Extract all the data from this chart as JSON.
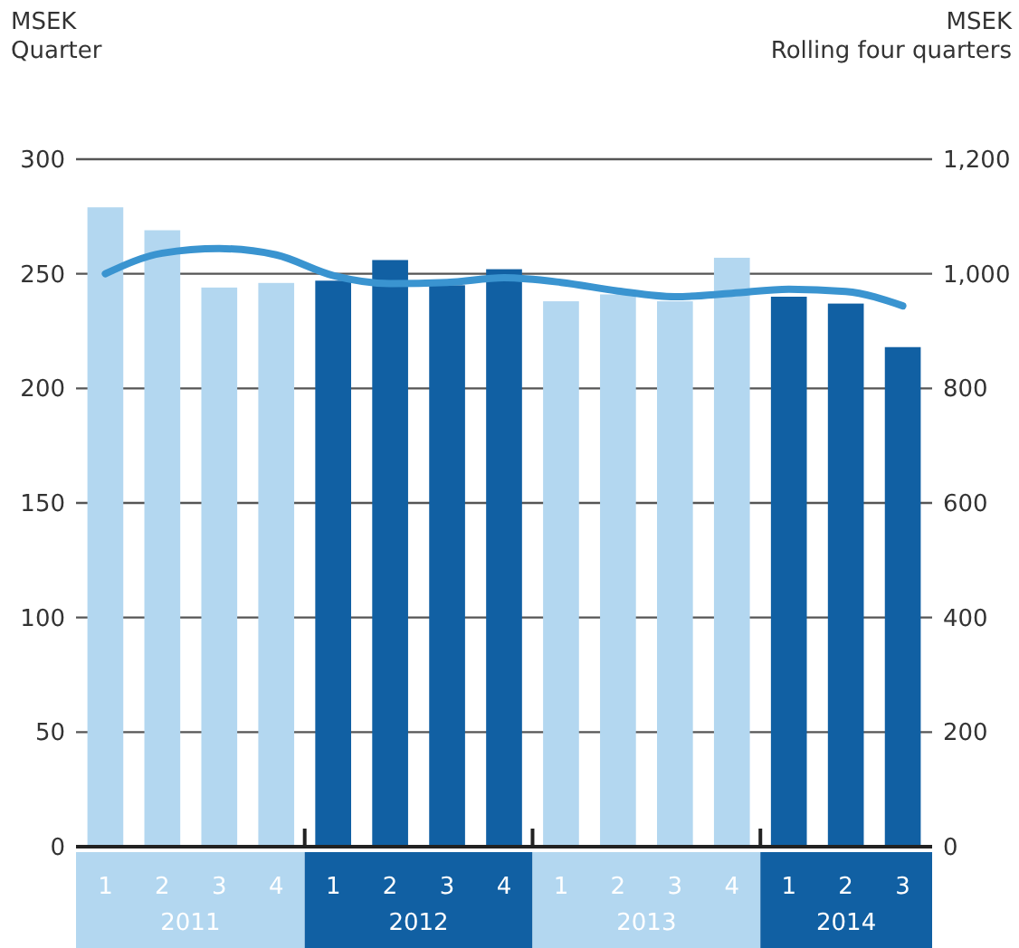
{
  "chart_data": {
    "type": "bar",
    "ylabel": "MSEK\nQuarter",
    "y2label": "MSEK\nRolling four quarters",
    "categories": [
      "1",
      "2",
      "3",
      "4",
      "1",
      "2",
      "3",
      "4",
      "1",
      "2",
      "3",
      "4",
      "1",
      "2",
      "3"
    ],
    "annotations": [
      "2011",
      "2012",
      "2013",
      "2014"
    ],
    "series": [
      {
        "colors": [
          "#b3d7f0",
          "#b3d7f0",
          "#b3d7f0",
          "#b3d7f0",
          "#1160a3",
          "#1160a3",
          "#1160a3",
          "#1160a3",
          "#b3d7f0",
          "#b3d7f0",
          "#b3d7f0",
          "#b3d7f0",
          "#1160a3",
          "#1160a3",
          "#1160a3"
        ],
        "values": [
          279,
          269,
          244,
          246,
          247,
          256,
          245,
          252,
          238,
          241,
          238,
          257,
          240,
          237,
          218
        ]
      },
      {
        "type": "line",
        "axis": "y2",
        "color": "#3a94d0",
        "values": [
          1000,
          1036,
          1044,
          1033,
          997,
          983,
          985,
          993,
          985,
          970,
          960,
          966,
          973,
          969,
          944
        ]
      }
    ],
    "ylim": [
      0,
      300
    ],
    "yticks": [
      0,
      50,
      100,
      150,
      200,
      250,
      300
    ],
    "y2lim": [
      0,
      1200
    ],
    "y2ticks": [
      0,
      {
        "value": 200,
        "label": "200"
      },
      {
        "value": 400,
        "label": "400"
      },
      {
        "value": 600,
        "label": "600"
      },
      {
        "value": 800,
        "label": "800"
      },
      {
        "value": 1000,
        "label": "1,000"
      },
      {
        "value": 1200,
        "label": "1,200"
      }
    ],
    "grid": "y"
  }
}
